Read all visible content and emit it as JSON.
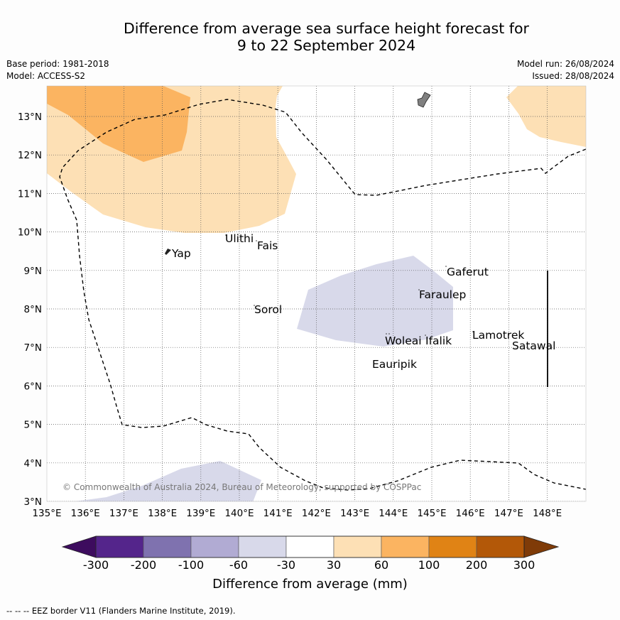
{
  "title": {
    "line1": "Difference from average sea surface height forecast for",
    "line2": "9 to 22 September 2024"
  },
  "meta": {
    "base_period": "Base period: 1981-2018",
    "model": "Model: ACCESS-S2",
    "model_run": "Model run: 26/08/2024",
    "issued": "Issued: 28/08/2024"
  },
  "map": {
    "lon_labels": [
      "135°E",
      "136°E",
      "137°E",
      "138°E",
      "139°E",
      "140°E",
      "141°E",
      "142°E",
      "143°E",
      "144°E",
      "145°E",
      "146°E",
      "147°E",
      "148°E"
    ],
    "lat_labels": [
      "13°N",
      "12°N",
      "11°N",
      "10°N",
      "9°N",
      "8°N",
      "7°N",
      "6°N",
      "5°N",
      "4°N",
      "3°N"
    ],
    "places": [
      "Yap",
      "Ulithi",
      "Fais",
      "Sorol",
      "Woleai",
      "Ifalik",
      "Eauripik",
      "Faraulep",
      "Gaferut",
      "Lamotrek",
      "Satawal"
    ],
    "copyright": "© Commonwealth of Australia 2024, Bureau of Meteorology, supported by COSPPac",
    "colors": {
      "land": "#808080",
      "anomaly_30_60": "#fde0b5",
      "anomaly_60_100": "#fbb461",
      "anomaly_neg30_neg60": "#d8d9ea",
      "eez_border": "#000000"
    }
  },
  "colorbar": {
    "ticks": [
      "-300",
      "-200",
      "-100",
      "-60",
      "-30",
      "30",
      "60",
      "100",
      "200",
      "300"
    ],
    "colors": [
      "#3d0c5e",
      "#54258b",
      "#7f72af",
      "#b1abd3",
      "#d8d9ea",
      "#ffffff",
      "#fde0b5",
      "#fbb461",
      "#e08315",
      "#b35808",
      "#7f3b08"
    ],
    "title": "Difference from average (mm)"
  },
  "footer": {
    "legend_text": "--  --  -- EEZ border V11 (Flanders Marine Institute, 2019)."
  }
}
